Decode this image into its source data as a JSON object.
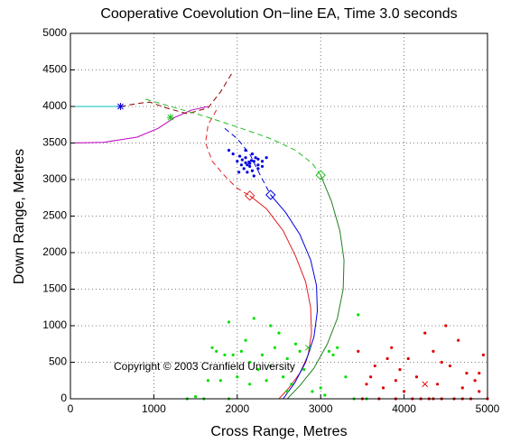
{
  "chart_data": {
    "type": "line",
    "title": "Cooperative Coevolution On−line EA, Time 3.0 seconds",
    "x_label": "Cross Range, Metres",
    "y_label": "Down Range, Metres",
    "annotation": "Copyright © 2003 Cranfield University",
    "xlim": [
      0,
      5000
    ],
    "ylim": [
      0,
      5000
    ],
    "xticks": [
      0,
      1000,
      2000,
      3000,
      4000,
      5000
    ],
    "yticks": [
      0,
      500,
      1000,
      1500,
      2000,
      2500,
      3000,
      3500,
      4000,
      4500,
      5000
    ],
    "grid": true,
    "series": [
      {
        "type": "line",
        "dash": false,
        "color": "#00bfbf",
        "x": [
          0,
          600
        ],
        "values": [
          4000,
          4000
        ]
      },
      {
        "type": "line",
        "dash": false,
        "color": "#bf00bf",
        "x": [
          0,
          400,
          800,
          1050,
          1250,
          1450,
          1650
        ],
        "values": [
          3500,
          3510,
          3580,
          3700,
          3850,
          3950,
          4000
        ]
      },
      {
        "type": "line",
        "dash": true,
        "color": "#8b0000",
        "x": [
          600,
          800,
          950,
          1150,
          1400,
          1650,
          1800,
          1950
        ],
        "values": [
          4000,
          4040,
          4060,
          3980,
          3900,
          3980,
          4200,
          4480
        ]
      },
      {
        "type": "line",
        "dash": true,
        "color": "#e02020",
        "x": [
          1750,
          1650,
          1620,
          1700,
          1850,
          2000,
          2150
        ],
        "values": [
          3950,
          3750,
          3500,
          3250,
          3050,
          2880,
          2780
        ]
      },
      {
        "type": "line",
        "dash": false,
        "color": "#e02020",
        "x": [
          2150,
          2350,
          2550,
          2700,
          2820,
          2880,
          2890,
          2850,
          2750,
          2620,
          2500
        ],
        "values": [
          2780,
          2600,
          2300,
          1950,
          1600,
          1250,
          900,
          600,
          350,
          150,
          0
        ]
      },
      {
        "type": "line",
        "dash": true,
        "color": "#20c020",
        "x": [
          900,
          1200,
          1600,
          2000,
          2400,
          2700,
          2900,
          3000
        ],
        "values": [
          4100,
          4000,
          3870,
          3720,
          3560,
          3400,
          3220,
          3060
        ]
      },
      {
        "type": "line",
        "dash": false,
        "color": "#208020",
        "x": [
          3000,
          3130,
          3230,
          3280,
          3270,
          3200,
          3080,
          2920,
          2750,
          2600
        ],
        "values": [
          3060,
          2700,
          2300,
          1900,
          1500,
          1100,
          750,
          420,
          180,
          0
        ]
      },
      {
        "type": "line",
        "dash": true,
        "color": "#0000e0",
        "x": [
          1850,
          2000,
          2150,
          2280,
          2400
        ],
        "values": [
          3700,
          3560,
          3350,
          3050,
          2790
        ]
      },
      {
        "type": "line",
        "dash": false,
        "color": "#0000e0",
        "x": [
          2400,
          2580,
          2750,
          2880,
          2950,
          2960,
          2920,
          2820,
          2690,
          2550
        ],
        "values": [
          2790,
          2550,
          2250,
          1900,
          1550,
          1200,
          850,
          500,
          220,
          0
        ]
      },
      {
        "type": "scatter",
        "color": "#0000e0",
        "x": [
          2150,
          2100,
          2200,
          2050,
          2250,
          2120,
          2180,
          2000,
          2300,
          2080,
          2220,
          2150,
          1950,
          2100,
          2250,
          2020,
          2180,
          2300,
          2060,
          2140,
          1900,
          2350,
          2200,
          2100,
          2250,
          2170,
          2030,
          2120
        ],
        "values": [
          3220,
          3300,
          3250,
          3200,
          3150,
          3100,
          3350,
          3250,
          3250,
          3150,
          3300,
          3180,
          3350,
          3400,
          3200,
          3100,
          3120,
          3180,
          3270,
          3240,
          3400,
          3300,
          3050,
          3230,
          3280,
          3260,
          3320,
          3200
        ]
      },
      {
        "type": "scatter",
        "color": "#00e000",
        "x": [
          1500,
          1600,
          1650,
          1700,
          1750,
          1800,
          1850,
          1900,
          2000,
          2050,
          2100,
          2150,
          2200,
          2250,
          2300,
          2350,
          2400,
          2450,
          2500,
          2550,
          2600,
          2650,
          2700,
          2750,
          2800,
          2900,
          3000,
          3050,
          3100,
          3150,
          3200,
          3300,
          3400,
          3450,
          3550,
          1950,
          2150,
          2600,
          1400,
          1900,
          2400
        ],
        "values": [
          30,
          0,
          250,
          700,
          650,
          250,
          600,
          0,
          300,
          650,
          800,
          500,
          1100,
          400,
          600,
          250,
          450,
          700,
          900,
          300,
          550,
          200,
          750,
          650,
          400,
          100,
          150,
          50,
          650,
          600,
          700,
          300,
          0,
          1150,
          0,
          600,
          200,
          100,
          0,
          1050,
          1000
        ]
      },
      {
        "type": "scatter",
        "color": "#e00000",
        "x": [
          3450,
          3500,
          3600,
          3650,
          3700,
          3750,
          3800,
          3850,
          3900,
          3950,
          4000,
          4050,
          4100,
          4150,
          4200,
          4250,
          4300,
          4350,
          4400,
          4450,
          4500,
          4550,
          4600,
          4650,
          4700,
          4750,
          4800,
          4850,
          4900,
          4950,
          5000,
          4350,
          4450,
          3900,
          4700,
          4900,
          3550
        ],
        "values": [
          650,
          0,
          300,
          450,
          0,
          150,
          550,
          700,
          250,
          400,
          100,
          550,
          0,
          300,
          0,
          900,
          0,
          650,
          200,
          500,
          1000,
          450,
          0,
          800,
          150,
          350,
          0,
          250,
          100,
          600,
          0,
          0,
          0,
          0,
          0,
          350,
          200
        ]
      },
      {
        "type": "marker",
        "shape": "star",
        "color": "#0000e0",
        "x": [
          600
        ],
        "values": [
          4000
        ]
      },
      {
        "type": "marker",
        "shape": "star",
        "color": "#20c020",
        "x": [
          1200
        ],
        "values": [
          3850
        ]
      },
      {
        "type": "marker",
        "shape": "diamond",
        "color": "#e02020",
        "x": [
          2150
        ],
        "values": [
          2780
        ]
      },
      {
        "type": "marker",
        "shape": "diamond",
        "color": "#0000e0",
        "x": [
          2400
        ],
        "values": [
          2790
        ]
      },
      {
        "type": "marker",
        "shape": "diamond",
        "color": "#20c020",
        "x": [
          3000
        ],
        "values": [
          3060
        ]
      },
      {
        "type": "marker",
        "shape": "cross",
        "color": "#20c020",
        "x": [
          2850
        ],
        "values": [
          700
        ]
      },
      {
        "type": "marker",
        "shape": "cross",
        "color": "#e00000",
        "x": [
          4250
        ],
        "values": [
          200
        ]
      }
    ]
  }
}
